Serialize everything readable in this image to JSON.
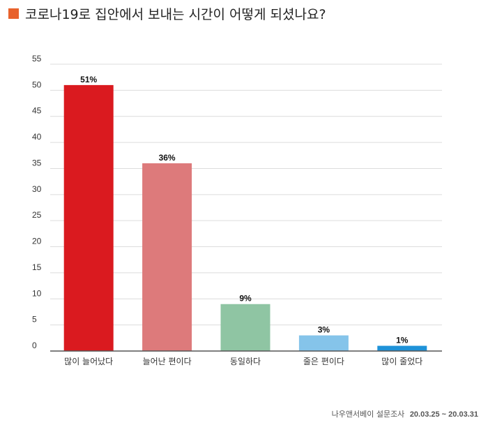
{
  "header": {
    "title": "코로나19로 집안에서 보내는 시간이 어떻게 되셨나요?",
    "square_color": "#E8622C"
  },
  "chart_data": {
    "type": "bar",
    "categories": [
      "많이 늘어났다",
      "늘어난 편이다",
      "동일하다",
      "줄은 편이다",
      "많이 줄었다"
    ],
    "values": [
      51,
      36,
      9,
      3,
      1
    ],
    "value_labels": [
      "51%",
      "36%",
      "9%",
      "3%",
      "1%"
    ],
    "colors": [
      "#DA1A1F",
      "#DD7A7B",
      "#8FC5A3",
      "#85C4EA",
      "#1E92D8"
    ],
    "yticks": [
      0,
      5,
      10,
      15,
      20,
      25,
      30,
      35,
      40,
      45,
      50,
      55
    ],
    "ylim": [
      0,
      55
    ],
    "grid": true,
    "title": "",
    "xlabel": "",
    "ylabel": ""
  },
  "footer": {
    "source": "나우앤서베이 설문조사",
    "dates": "20.03.25 ~ 20.03.31"
  }
}
